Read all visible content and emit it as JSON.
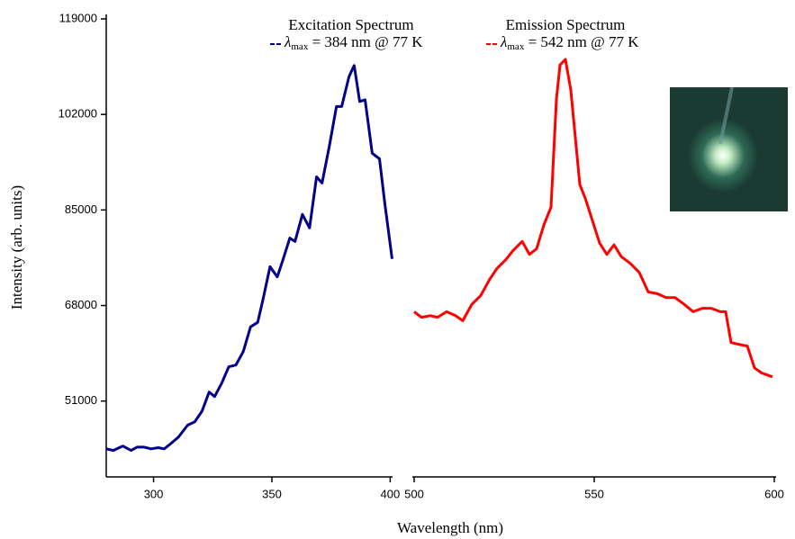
{
  "chart_data": {
    "type": "line",
    "y_label": "Intensity (arb. units)",
    "x_label": "Wavelength (nm)",
    "ylim": [
      37500,
      119000
    ],
    "yticks": [
      51000,
      68000,
      85000,
      102000,
      119000
    ],
    "series": [
      {
        "name": "Excitation Spectrum",
        "color": "#00008b",
        "annotation": {
          "symbol": "λ",
          "subscript": "max",
          "text": " = 384 nm @ 77 K"
        },
        "xlim": [
          280,
          401
        ],
        "xticks": [
          300,
          350,
          400
        ],
        "x": [
          280,
          283,
          287,
          290.5,
          293,
          296,
          299,
          302,
          304.5,
          307.5,
          310.5,
          314.4,
          317.4,
          320.5,
          323.5,
          325.8,
          328.8,
          331.8,
          334.8,
          337.9,
          341,
          344,
          346.2,
          349.2,
          352.3,
          354.5,
          357.6,
          359.8,
          362.9,
          365.9,
          368.9,
          371.2,
          374.2,
          377.3,
          379.5,
          382.6,
          384.8,
          387.1,
          389.4,
          392.4,
          395.5,
          397.7,
          400.8
        ],
        "values": [
          42500,
          42200,
          43000,
          42200,
          42800,
          42800,
          42500,
          42700,
          42500,
          43500,
          44600,
          46700,
          47300,
          49200,
          52600,
          51800,
          54200,
          57100,
          57400,
          59800,
          64200,
          65000,
          69000,
          74900,
          73100,
          75900,
          80000,
          79400,
          84200,
          81800,
          90900,
          89800,
          96200,
          103400,
          103400,
          108700,
          110700,
          104300,
          104600,
          95100,
          94100,
          86300,
          76300
        ]
      },
      {
        "name": "Emission Spectrum",
        "color": "#ff0000",
        "annotation": {
          "symbol": "λ",
          "subscript": "max",
          "text": " = 542 nm @ 77 K"
        },
        "xlim": [
          499.5,
          600.5
        ],
        "xticks": [
          500,
          550,
          600
        ],
        "x": [
          500,
          502,
          504.5,
          506.5,
          509,
          511.5,
          513.5,
          516,
          518.5,
          521,
          523,
          525.5,
          527.5,
          530,
          532,
          534,
          536,
          538,
          539.5,
          540.5,
          542,
          543.5,
          546,
          547.5,
          549.5,
          551.5,
          553.5,
          555.5,
          557.5,
          560,
          562.5,
          565,
          567.5,
          570,
          572.5,
          575,
          577.5,
          580,
          582.5,
          585,
          586.5,
          588,
          590,
          592.5,
          594.5,
          596.5,
          599.5
        ],
        "values": [
          66900,
          65900,
          66200,
          65900,
          66900,
          66200,
          65300,
          68200,
          69800,
          72700,
          74600,
          76200,
          77800,
          79400,
          77100,
          78100,
          82300,
          85500,
          104700,
          110800,
          111800,
          106300,
          89500,
          87100,
          83100,
          79100,
          77100,
          78800,
          76700,
          75500,
          73900,
          70400,
          70100,
          69400,
          69400,
          68200,
          66900,
          67500,
          67500,
          66900,
          66900,
          61400,
          61100,
          60800,
          56900,
          56000,
          55300
        ]
      }
    ]
  }
}
